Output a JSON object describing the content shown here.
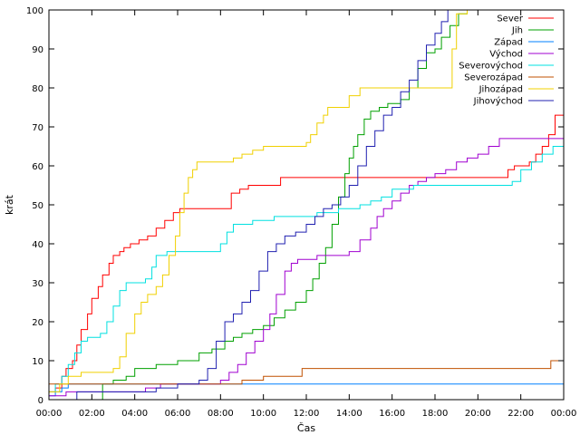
{
  "chart_data": {
    "type": "line",
    "title": "",
    "xlabel": "Čas",
    "ylabel": "krát",
    "xlim": [
      0,
      24
    ],
    "ylim": [
      0,
      100
    ],
    "x_tick_labels": [
      "00:00",
      "02:00",
      "04:00",
      "06:00",
      "08:00",
      "10:00",
      "12:00",
      "14:00",
      "16:00",
      "18:00",
      "20:00",
      "22:00",
      "00:00"
    ],
    "y_ticks": [
      0,
      10,
      20,
      30,
      40,
      50,
      60,
      70,
      80,
      90,
      100
    ],
    "legend_position": "top-right",
    "grid": false,
    "series": [
      {
        "name": "Sever",
        "color": "#ff0000",
        "x": [
          0,
          0.3,
          0.6,
          0.8,
          1.1,
          1.3,
          1.5,
          1.8,
          2.0,
          2.3,
          2.5,
          2.8,
          3.0,
          3.3,
          3.5,
          3.8,
          4.2,
          4.6,
          5.0,
          5.4,
          5.8,
          6.1,
          6.6,
          7.2,
          8.0,
          8.5,
          8.9,
          9.3,
          10.0,
          10.8,
          11.5,
          12.5,
          13.5,
          14.5,
          15.0,
          16.0,
          17.0,
          18.0,
          19.0,
          20.0,
          21.0,
          21.4,
          21.7,
          22.0,
          22.4,
          22.7,
          23.0,
          23.3,
          23.6,
          24.0
        ],
        "y": [
          2,
          3,
          6,
          8,
          10,
          14,
          18,
          22,
          26,
          29,
          32,
          35,
          37,
          38,
          39,
          40,
          41,
          42,
          44,
          46,
          48,
          49,
          49,
          49,
          49,
          53,
          54,
          55,
          55,
          57,
          57,
          57,
          57,
          57,
          57,
          57,
          57,
          57,
          57,
          57,
          57,
          59,
          60,
          60,
          61,
          63,
          65,
          68,
          73,
          73
        ]
      },
      {
        "name": "Jih",
        "color": "#00a000",
        "x": [
          0,
          1.5,
          2.5,
          3.0,
          3.6,
          4.0,
          5.0,
          6.0,
          7.0,
          7.6,
          8.2,
          8.6,
          9.0,
          9.5,
          10.0,
          10.5,
          11.0,
          11.5,
          12.0,
          12.3,
          12.6,
          12.9,
          13.2,
          13.5,
          13.8,
          14.0,
          14.2,
          14.4,
          14.7,
          15.0,
          15.4,
          15.8,
          16.0,
          16.4,
          16.8,
          17.2,
          17.6,
          18.0,
          18.3,
          18.7,
          19.1,
          19.5,
          24.0
        ],
        "y": [
          0,
          0,
          4,
          5,
          6,
          8,
          9,
          10,
          12,
          13,
          15,
          16,
          17,
          18,
          19,
          21,
          23,
          25,
          28,
          31,
          35,
          39,
          45,
          52,
          58,
          62,
          65,
          68,
          72,
          74,
          75,
          76,
          76,
          77,
          80,
          85,
          89,
          90,
          93,
          96,
          99,
          100,
          100
        ]
      },
      {
        "name": "Západ",
        "color": "#0080ff",
        "x": [
          0,
          0.3,
          0.6,
          0.9,
          1.2,
          2.0,
          2.5,
          3.0,
          3.5,
          4.0,
          5.0,
          6.0,
          7.0,
          8.0,
          9.0,
          10.0,
          11.0,
          12.0,
          13.0,
          14.0,
          15.0,
          16.0,
          17.0,
          18.0,
          19.0,
          20.0,
          21.0,
          22.0,
          24.0
        ],
        "y": [
          1,
          2,
          3,
          4,
          4,
          4,
          4,
          4,
          4,
          4,
          4,
          4,
          4,
          4,
          4,
          4,
          4,
          4,
          4,
          4,
          4,
          4,
          4,
          4,
          4,
          4,
          4,
          4,
          4
        ]
      },
      {
        "name": "Východ",
        "color": "#a000d0",
        "x": [
          0,
          0.8,
          1.5,
          2.5,
          3.5,
          4.5,
          5.2,
          6.0,
          6.8,
          7.5,
          8.0,
          8.4,
          8.8,
          9.2,
          9.6,
          10.0,
          10.3,
          10.6,
          11.0,
          11.3,
          11.6,
          12.0,
          12.5,
          13.0,
          13.5,
          14.0,
          14.5,
          15.0,
          15.3,
          15.6,
          16.0,
          16.4,
          16.8,
          17.2,
          17.6,
          18.0,
          18.5,
          19.0,
          19.5,
          20.0,
          20.5,
          21.0,
          22.0,
          22.5,
          23.0,
          23.5,
          24.0
        ],
        "y": [
          1,
          2,
          2,
          2,
          2,
          3,
          4,
          4,
          4,
          4,
          5,
          7,
          9,
          12,
          15,
          18,
          22,
          27,
          33,
          35,
          36,
          36,
          37,
          37,
          37,
          38,
          41,
          44,
          47,
          49,
          51,
          53,
          55,
          56,
          57,
          58,
          59,
          61,
          62,
          63,
          65,
          67,
          67,
          67,
          67,
          67,
          68
        ]
      },
      {
        "name": "Severovýchod",
        "color": "#00e0e0",
        "x": [
          0,
          0.3,
          0.6,
          0.9,
          1.2,
          1.5,
          1.8,
          2.1,
          2.4,
          2.7,
          3.0,
          3.3,
          3.6,
          3.9,
          4.2,
          4.5,
          4.8,
          5.0,
          5.5,
          6.0,
          6.5,
          7.0,
          7.5,
          8.0,
          8.3,
          8.6,
          9.0,
          9.5,
          10.0,
          10.5,
          11.0,
          11.5,
          12.0,
          12.5,
          13.0,
          13.5,
          14.0,
          14.5,
          15.0,
          15.5,
          16.0,
          17.0,
          18.0,
          19.0,
          20.0,
          21.0,
          21.6,
          22.0,
          22.5,
          23.0,
          23.5,
          24.0
        ],
        "y": [
          2,
          4,
          6,
          9,
          12,
          15,
          16,
          16,
          17,
          20,
          24,
          28,
          30,
          30,
          30,
          31,
          34,
          37,
          38,
          38,
          38,
          38,
          38,
          40,
          43,
          45,
          45,
          46,
          46,
          47,
          47,
          47,
          47,
          48,
          48,
          49,
          49,
          50,
          51,
          52,
          54,
          55,
          55,
          55,
          55,
          55,
          56,
          59,
          61,
          63,
          65,
          70
        ]
      },
      {
        "name": "Severozápad",
        "color": "#c05000",
        "x": [
          0,
          2.0,
          4.0,
          6.0,
          8.0,
          9.0,
          10.0,
          11.0,
          11.8,
          13.0,
          15.0,
          17.0,
          19.0,
          21.0,
          22.0,
          23.0,
          23.4,
          24.0
        ],
        "y": [
          4,
          4,
          4,
          4,
          4,
          5,
          6,
          6,
          8,
          8,
          8,
          8,
          8,
          8,
          8,
          8,
          10,
          10
        ]
      },
      {
        "name": "Jihozápad",
        "color": "#f0d000",
        "x": [
          0,
          0.5,
          0.9,
          1.5,
          2.0,
          2.5,
          3.0,
          3.3,
          3.6,
          4.0,
          4.3,
          4.6,
          5.0,
          5.3,
          5.6,
          5.9,
          6.1,
          6.3,
          6.5,
          6.7,
          6.9,
          7.2,
          8.0,
          8.6,
          9.0,
          9.5,
          10.0,
          10.5,
          11.0,
          11.5,
          12.0,
          12.2,
          12.5,
          12.8,
          13.0,
          13.3,
          13.6,
          14.0,
          14.5,
          15.0,
          16.0,
          17.0,
          18.0,
          18.5,
          18.8,
          19.0,
          19.5,
          24.0
        ],
        "y": [
          2,
          4,
          6,
          7,
          7,
          7,
          8,
          11,
          17,
          22,
          25,
          27,
          29,
          32,
          37,
          42,
          48,
          53,
          57,
          59,
          61,
          61,
          61,
          62,
          63,
          64,
          65,
          65,
          65,
          65,
          66,
          68,
          71,
          73,
          75,
          75,
          75,
          78,
          80,
          80,
          80,
          80,
          80,
          80,
          90,
          99,
          100,
          100
        ]
      },
      {
        "name": "Jihovýchod",
        "color": "#2020b0",
        "x": [
          0,
          1.3,
          2.0,
          3.0,
          4.0,
          5.0,
          6.0,
          7.0,
          7.4,
          7.8,
          8.2,
          8.6,
          9.0,
          9.4,
          9.8,
          10.2,
          10.6,
          11.0,
          11.5,
          12.0,
          12.4,
          12.8,
          13.2,
          13.6,
          14.0,
          14.4,
          14.8,
          15.2,
          15.6,
          16.0,
          16.4,
          16.8,
          17.2,
          17.6,
          18.0,
          18.3,
          18.6,
          19.0,
          24.0
        ],
        "y": [
          0,
          2,
          2,
          2,
          2,
          3,
          4,
          5,
          8,
          15,
          20,
          22,
          25,
          28,
          33,
          38,
          40,
          42,
          43,
          45,
          47,
          49,
          50,
          52,
          55,
          60,
          65,
          69,
          73,
          75,
          79,
          82,
          87,
          91,
          94,
          97,
          100,
          100,
          100
        ]
      }
    ]
  }
}
